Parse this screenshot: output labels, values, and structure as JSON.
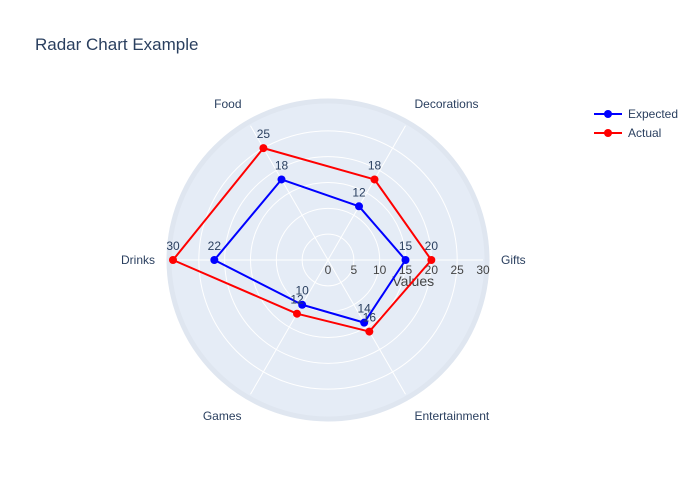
{
  "chart_data": {
    "type": "radar",
    "title": "Radar Chart Example",
    "categories": [
      "Gifts",
      "Decorations",
      "Food",
      "Drinks",
      "Games",
      "Entertainment"
    ],
    "radial_axis": {
      "title": "Values",
      "range": [
        0,
        30
      ],
      "ticks": [
        0,
        5,
        10,
        15,
        20,
        25,
        30
      ]
    },
    "series": [
      {
        "name": "Expected",
        "color": "#0000ff",
        "values": [
          15,
          12,
          18,
          22,
          10,
          14
        ]
      },
      {
        "name": "Actual",
        "color": "#ff0000",
        "values": [
          20,
          18,
          25,
          30,
          12,
          16
        ]
      }
    ],
    "legend_position": "top-right",
    "grid": true
  }
}
